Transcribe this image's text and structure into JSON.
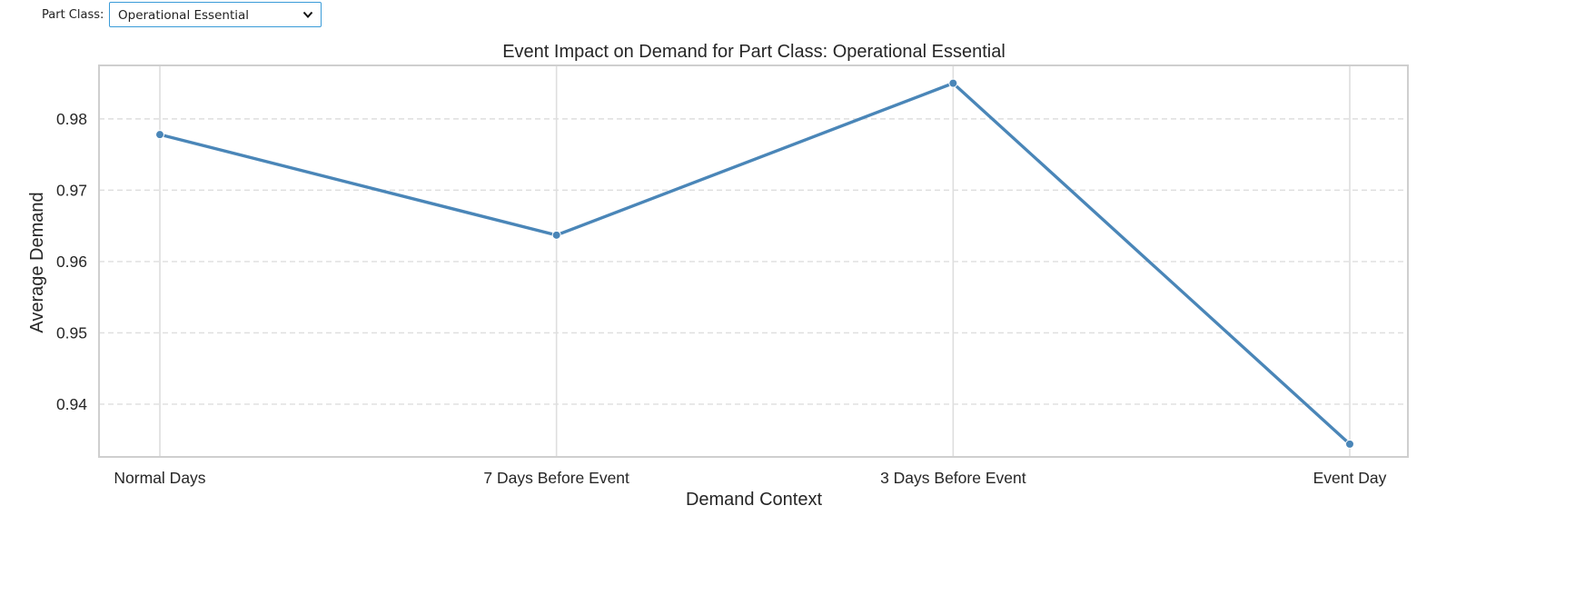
{
  "controls": {
    "part_class_label": "Part Class:",
    "part_class_selected": "Operational Essential",
    "chevron_icon": "chevron-down-icon"
  },
  "colors": {
    "line": "#4a86b8",
    "grid": "#dedede",
    "frame": "#cfcfcf",
    "select_border": "#3a9bd8"
  },
  "chart_data": {
    "type": "line",
    "title": "Event Impact on Demand for Part Class: Operational Essential",
    "xlabel": "Demand Context",
    "ylabel": "Average Demand",
    "categories": [
      "Normal Days",
      "7 Days Before Event",
      "3 Days Before Event",
      "Event Day"
    ],
    "series": [
      {
        "values": [
          0.9778,
          0.9637,
          0.985,
          0.9344
        ]
      }
    ],
    "ylim": [
      0.9326,
      0.9875
    ],
    "yticks": [
      0.94,
      0.95,
      0.96,
      0.97,
      0.98
    ],
    "ytick_labels": [
      "0.94",
      "0.95",
      "0.96",
      "0.97",
      "0.98"
    ],
    "grid": "y dashed, x solid",
    "legend": "none",
    "markers": true
  }
}
